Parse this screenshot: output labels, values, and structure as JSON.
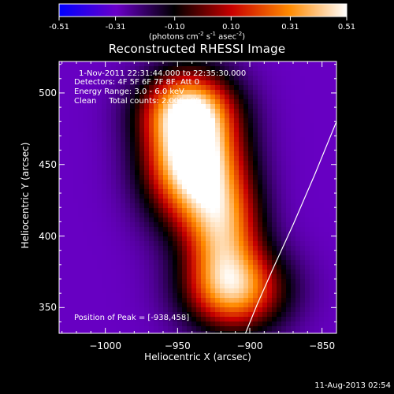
{
  "chart_data": {
    "type": "heatmap",
    "title": "Reconstructed RHESSI Image",
    "xlabel": "Heliocentric X (arcsec)",
    "ylabel": "Heliocentric Y (arcsec)",
    "xlim": [
      -1032,
      -840
    ],
    "ylim": [
      332,
      522
    ],
    "xticks": [
      -1000,
      -950,
      -900,
      -850
    ],
    "yticks": [
      350,
      400,
      450,
      500
    ],
    "colorbar": {
      "min": -0.51,
      "max": 0.51,
      "ticks": [
        -0.51,
        -0.31,
        -0.1,
        0.1,
        0.31,
        0.51
      ],
      "tick_labels": [
        "-0.51",
        "-0.31",
        "-0.10",
        "0.10",
        "0.31",
        "0.51"
      ],
      "units_parts": [
        "(photons cm",
        "-2",
        " s",
        "-1",
        " asec",
        "-2",
        ")"
      ],
      "colormap": [
        "#0000ff",
        "#6a00c8",
        "#000000",
        "#c80000",
        "#ff8a00",
        "#ffffff"
      ]
    },
    "background_level": -0.3,
    "sources": [
      {
        "x": -940,
        "y": 458,
        "sx": 22,
        "sy": 32,
        "amp": 0.95
      },
      {
        "x": -945,
        "y": 490,
        "sx": 22,
        "sy": 16,
        "amp": 0.35
      },
      {
        "x": -918,
        "y": 405,
        "sx": 18,
        "sy": 28,
        "amp": 0.55
      },
      {
        "x": -910,
        "y": 362,
        "sx": 24,
        "sy": 20,
        "amp": 0.6
      }
    ],
    "limb_curve": {
      "x": [
        -903,
        -895,
        -884,
        -870,
        -855,
        -840
      ],
      "y": [
        332,
        352,
        377,
        408,
        443,
        480
      ]
    },
    "annotations": {
      "time_range": "1-Nov-2011 22:31:44.000 to 22:35:30.000",
      "detectors": "Detectors: 4F 5F 6F 7F 8F, Att 0",
      "energy": "Energy Range: 3.0 - 6.0 keV",
      "clean": "Clean     Total counts: 2.00E+05",
      "peak": "Position of Peak = [-938,458]"
    },
    "timestamp": "11-Aug-2013 02:54"
  }
}
